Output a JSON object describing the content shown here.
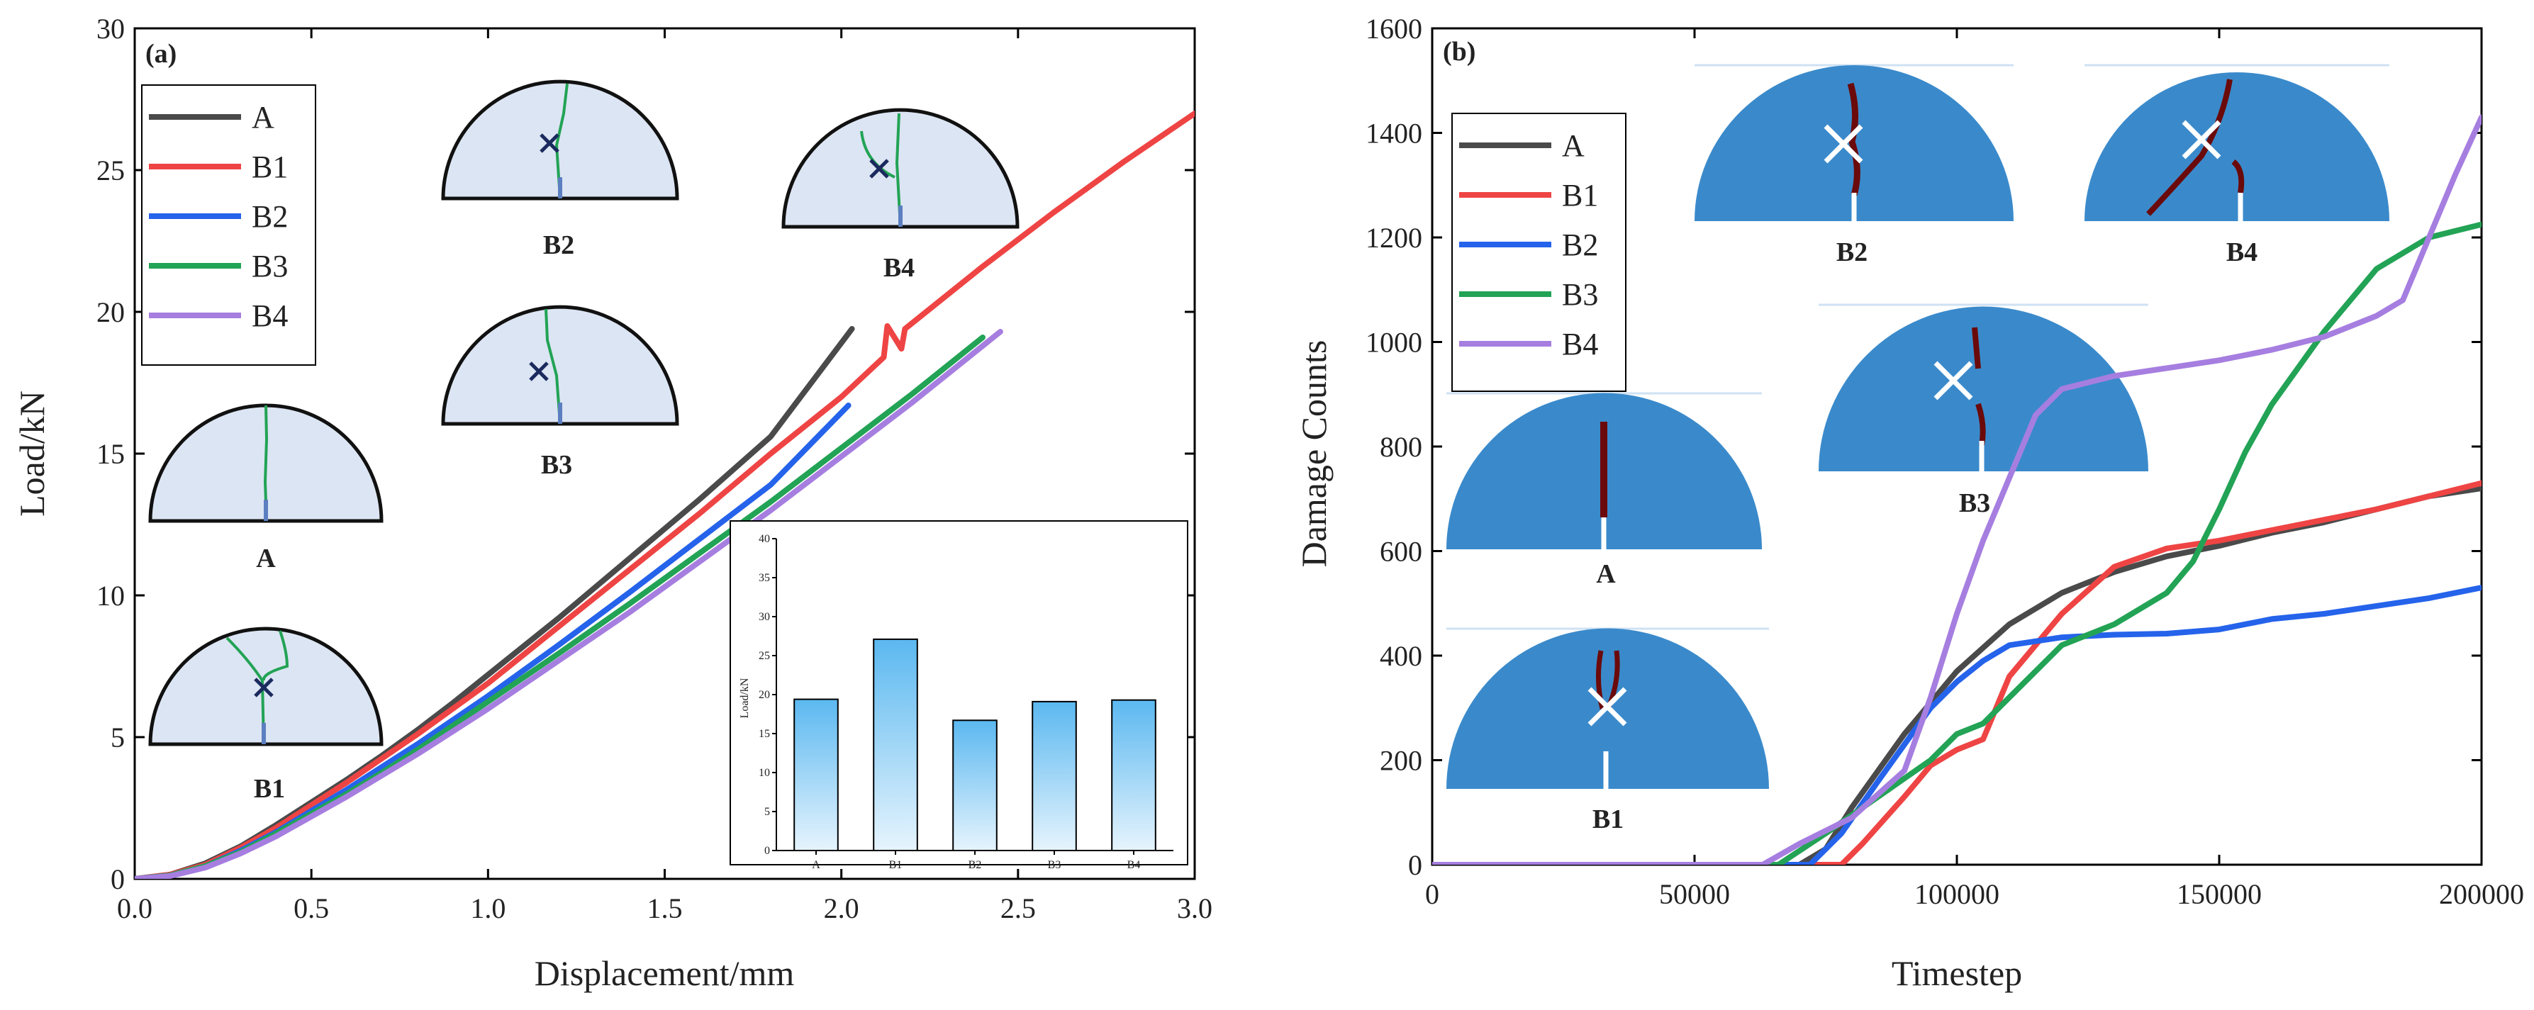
{
  "colors": {
    "A": "#4a4a4a",
    "B1": "#ef4444",
    "B2": "#2563eb",
    "B3": "#22a355",
    "B4": "#a67ee0",
    "specimen_fill_a": "#dce5f3",
    "specimen_fill_b": "#3a8acb",
    "crack_green": "#22a355",
    "crack_dark": "#6b0a0a",
    "bar_top": "#5bb8f0",
    "bar_bottom": "#e6f4fd"
  },
  "chart_data": [
    {
      "type": "line",
      "panel": "(a)",
      "xlabel": "Displacement/mm",
      "ylabel": "Load/kN",
      "xlim": [
        0,
        3.0
      ],
      "ylim": [
        0,
        30
      ],
      "xticks": [
        "0.0",
        "0.5",
        "1.0",
        "1.5",
        "2.0",
        "2.5",
        "3.0"
      ],
      "yticks": [
        "0",
        "5",
        "10",
        "15",
        "20",
        "25",
        "30"
      ],
      "legend": "top-left",
      "series": [
        {
          "name": "A",
          "x": [
            0,
            0.1,
            0.2,
            0.3,
            0.4,
            0.5,
            0.6,
            0.7,
            0.8,
            0.9,
            1.0,
            1.2,
            1.4,
            1.6,
            1.8,
            2.03
          ],
          "y": [
            0,
            0.15,
            0.55,
            1.15,
            1.9,
            2.7,
            3.5,
            4.35,
            5.25,
            6.2,
            7.2,
            9.2,
            11.3,
            13.4,
            15.6,
            19.4
          ]
        },
        {
          "name": "B1",
          "x": [
            0,
            0.1,
            0.2,
            0.3,
            0.4,
            0.5,
            0.6,
            0.7,
            0.8,
            0.9,
            1.0,
            1.2,
            1.4,
            1.6,
            1.8,
            2.0,
            2.12,
            2.13,
            2.17,
            2.18,
            2.4,
            2.6,
            2.8,
            3.0
          ],
          "y": [
            0,
            0.15,
            0.5,
            1.1,
            1.8,
            2.6,
            3.4,
            4.25,
            5.1,
            6.0,
            6.9,
            8.9,
            10.9,
            12.9,
            15.0,
            17.0,
            18.4,
            19.5,
            18.7,
            19.4,
            21.6,
            23.5,
            25.3,
            27.0
          ]
        },
        {
          "name": "B2",
          "x": [
            0,
            0.1,
            0.2,
            0.3,
            0.4,
            0.5,
            0.6,
            0.7,
            0.8,
            0.9,
            1.0,
            1.2,
            1.4,
            1.6,
            1.8,
            2.02
          ],
          "y": [
            0,
            0.12,
            0.45,
            1.0,
            1.65,
            2.4,
            3.15,
            3.95,
            4.75,
            5.6,
            6.45,
            8.25,
            10.1,
            12.0,
            13.9,
            16.7
          ]
        },
        {
          "name": "B3",
          "x": [
            0,
            0.1,
            0.2,
            0.3,
            0.4,
            0.5,
            0.6,
            0.7,
            0.8,
            0.9,
            1.0,
            1.2,
            1.4,
            1.6,
            1.8,
            2.0,
            2.2,
            2.4
          ],
          "y": [
            0,
            0.12,
            0.45,
            0.95,
            1.6,
            2.3,
            3.0,
            3.75,
            4.55,
            5.4,
            6.25,
            7.95,
            9.7,
            11.5,
            13.3,
            15.2,
            17.1,
            19.1
          ]
        },
        {
          "name": "B4",
          "x": [
            0,
            0.1,
            0.2,
            0.3,
            0.4,
            0.5,
            0.6,
            0.7,
            0.8,
            0.9,
            1.0,
            1.2,
            1.4,
            1.6,
            1.8,
            2.0,
            2.2,
            2.45
          ],
          "y": [
            0,
            0.1,
            0.4,
            0.9,
            1.5,
            2.2,
            2.9,
            3.65,
            4.4,
            5.2,
            6.0,
            7.7,
            9.4,
            11.2,
            13.0,
            14.9,
            16.8,
            19.3
          ]
        }
      ],
      "specimen_labels": [
        "B2",
        "B4",
        "B3",
        "A",
        "B1"
      ]
    },
    {
      "type": "bar",
      "panel": "(a) inset",
      "ylabel": "Load/kN",
      "categories": [
        "A",
        "B1",
        "B2",
        "B3",
        "B4"
      ],
      "values": [
        19.4,
        27.1,
        16.7,
        19.1,
        19.3
      ],
      "ylim": [
        0,
        40
      ],
      "yticks": [
        "0",
        "5",
        "10",
        "15",
        "20",
        "25",
        "30",
        "35",
        "40"
      ]
    },
    {
      "type": "line",
      "panel": "(b)",
      "xlabel": "Timestep",
      "ylabel": "Damage Counts",
      "xlim": [
        0,
        200000
      ],
      "ylim": [
        0,
        1600
      ],
      "xticks": [
        "0",
        "50000",
        "100000",
        "150000",
        "200000"
      ],
      "yticks": [
        "0",
        "200",
        "400",
        "600",
        "800",
        "1000",
        "1200",
        "1400",
        "1600"
      ],
      "legend": "top-left",
      "series": [
        {
          "name": "A",
          "x": [
            0,
            70000,
            75000,
            80000,
            90000,
            100000,
            110000,
            120000,
            130000,
            140000,
            150000,
            160000,
            170000,
            180000,
            190000,
            200000
          ],
          "y": [
            0,
            0,
            30,
            110,
            250,
            370,
            460,
            520,
            560,
            590,
            610,
            635,
            655,
            680,
            705,
            720
          ]
        },
        {
          "name": "B1",
          "x": [
            0,
            78000,
            82000,
            90000,
            95000,
            100000,
            105000,
            110000,
            120000,
            130000,
            140000,
            150000,
            160000,
            170000,
            180000,
            190000,
            200000
          ],
          "y": [
            0,
            0,
            40,
            130,
            190,
            220,
            240,
            360,
            480,
            570,
            605,
            620,
            640,
            660,
            680,
            705,
            730
          ]
        },
        {
          "name": "B2",
          "x": [
            0,
            72000,
            78000,
            85000,
            90000,
            95000,
            100000,
            105000,
            110000,
            120000,
            130000,
            140000,
            150000,
            160000,
            170000,
            180000,
            190000,
            200000
          ],
          "y": [
            0,
            0,
            60,
            160,
            230,
            300,
            350,
            390,
            420,
            435,
            440,
            442,
            450,
            470,
            480,
            495,
            510,
            530
          ]
        },
        {
          "name": "B3",
          "x": [
            0,
            66000,
            75000,
            85000,
            95000,
            100000,
            105000,
            110000,
            120000,
            130000,
            140000,
            145000,
            150000,
            155000,
            160000,
            170000,
            180000,
            190000,
            200000
          ],
          "y": [
            0,
            0,
            60,
            130,
            200,
            250,
            270,
            320,
            420,
            460,
            520,
            580,
            680,
            790,
            880,
            1020,
            1140,
            1200,
            1225
          ]
        },
        {
          "name": "B4",
          "x": [
            0,
            63000,
            70000,
            80000,
            90000,
            95000,
            100000,
            105000,
            110000,
            115000,
            120000,
            130000,
            140000,
            150000,
            160000,
            170000,
            180000,
            185000,
            190000,
            195000,
            200000
          ],
          "y": [
            0,
            0,
            40,
            90,
            180,
            320,
            480,
            620,
            740,
            860,
            910,
            935,
            950,
            965,
            985,
            1010,
            1050,
            1080,
            1200,
            1320,
            1430
          ]
        }
      ],
      "specimen_labels": [
        "B2",
        "B4",
        "B3",
        "A",
        "B1"
      ]
    }
  ]
}
